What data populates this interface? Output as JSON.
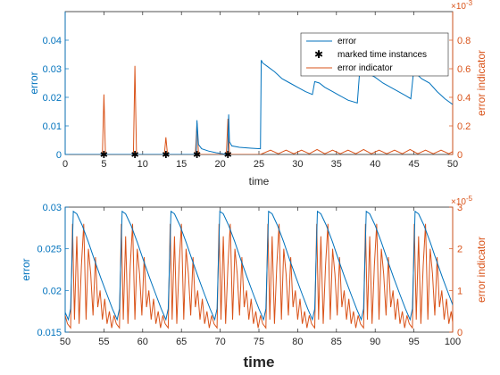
{
  "colors": {
    "error": "#0072BD",
    "indicator": "#D95319",
    "marker": "#000000",
    "axis": "#262626"
  },
  "chart_data": [
    {
      "type": "line",
      "xlabel": "time",
      "ylabel_left": "error",
      "ylabel_right": "error indicator",
      "right_exponent_base": "×10",
      "right_exponent": "-3",
      "xlim": [
        0,
        50
      ],
      "ylim_left": [
        0,
        0.05
      ],
      "ylim_right": [
        0,
        1
      ],
      "xticks": [
        "0",
        "5",
        "10",
        "15",
        "20",
        "25",
        "30",
        "35",
        "40",
        "45",
        "50"
      ],
      "yticks_left": [
        "0",
        "0.01",
        "0.02",
        "0.03",
        "0.04"
      ],
      "yticks_right": [
        "0",
        "0.2",
        "0.4",
        "0.6",
        "0.8"
      ],
      "legend_position": "top-right",
      "series": [
        {
          "name": "error",
          "axis": "left",
          "style": "line",
          "x": [
            0,
            16.9,
            17.0,
            17.2,
            17.6,
            18.5,
            19.5,
            21.0,
            21.1,
            21.2,
            21.5,
            22.5,
            24.0,
            25.2,
            25.3,
            25.5,
            26.0,
            27.0,
            28.0,
            29.0,
            30.0,
            31.0,
            31.9,
            32.2,
            32.8,
            33.5,
            34.5,
            35.5,
            36.5,
            37.7,
            38.0,
            38.3,
            39.0,
            40.0,
            41.0,
            42.0,
            43.0,
            44.0,
            44.6,
            44.9,
            45.2,
            46.0,
            47.0,
            48.0,
            49.0,
            50.0
          ],
          "y": [
            0,
            0,
            0.012,
            0.0035,
            0.002,
            0.0012,
            0.0006,
            0,
            0.014,
            0.0045,
            0.003,
            0.0025,
            0.0022,
            0.002,
            0.033,
            0.032,
            0.031,
            0.029,
            0.0265,
            0.025,
            0.0235,
            0.022,
            0.021,
            0.0255,
            0.025,
            0.0235,
            0.022,
            0.0205,
            0.019,
            0.018,
            0.029,
            0.0295,
            0.0285,
            0.027,
            0.025,
            0.0235,
            0.022,
            0.0205,
            0.0195,
            0.0275,
            0.0285,
            0.0265,
            0.025,
            0.022,
            0.0195,
            0.0175
          ]
        },
        {
          "name": "marked time instances",
          "axis": "left",
          "style": "marker",
          "x": [
            5,
            9,
            13,
            17,
            21
          ],
          "y": [
            0,
            0,
            0,
            0,
            0
          ]
        },
        {
          "name": "error indicator",
          "axis": "right",
          "style": "line",
          "x": [
            0,
            4.8,
            5.0,
            5.2,
            8.8,
            9.0,
            9.2,
            12.8,
            13.0,
            13.2,
            16.8,
            17.0,
            17.2,
            20.8,
            21.0,
            21.2,
            25.2,
            26.5,
            27.5,
            28.5,
            29.5,
            30.5,
            31.5,
            32.5,
            33.5,
            34.5,
            35.5,
            36.5,
            37.5,
            38.5,
            39.5,
            40.5,
            41.5,
            42.5,
            43.5,
            44.5,
            45.5,
            46.5,
            47.5,
            48.5,
            49.5,
            50.0
          ],
          "y": [
            0,
            0,
            0.42,
            0,
            0,
            0.62,
            0,
            0,
            0.12,
            0,
            0,
            0.22,
            0,
            0,
            0.25,
            0,
            0,
            0.03,
            0.005,
            0.03,
            0.005,
            0.03,
            0.005,
            0.035,
            0.005,
            0.03,
            0.005,
            0.03,
            0.005,
            0.035,
            0.005,
            0.03,
            0.005,
            0.03,
            0.005,
            0.035,
            0.005,
            0.03,
            0.005,
            0.03,
            0.005,
            0.02
          ]
        }
      ]
    },
    {
      "type": "line",
      "xlabel": "time",
      "ylabel_left": "error",
      "ylabel_right": "error indicator",
      "right_exponent_base": "×10",
      "right_exponent": "-5",
      "xlim": [
        50,
        100
      ],
      "ylim_left": [
        0.015,
        0.03
      ],
      "ylim_right": [
        0,
        3
      ],
      "xticks": [
        "50",
        "55",
        "60",
        "65",
        "70",
        "75",
        "80",
        "85",
        "90",
        "95",
        "100"
      ],
      "yticks_left": [
        "0.015",
        "0.02",
        "0.025",
        "0.03"
      ],
      "yticks_right": [
        "0",
        "1",
        "2",
        "3"
      ],
      "period": 6.3,
      "start": 50.7,
      "series": [
        {
          "name": "error",
          "axis": "left",
          "style": "periodic",
          "shape_x": [
            0,
            0.35,
            0.8,
            1.5,
            2.3,
            3.1,
            3.9,
            4.7,
            5.4,
            6.0
          ],
          "shape_y": [
            0.0178,
            0.0295,
            0.0292,
            0.0278,
            0.0258,
            0.0236,
            0.0215,
            0.0195,
            0.0178,
            0.0165
          ]
        },
        {
          "name": "error indicator",
          "axis": "right",
          "style": "periodic",
          "shape_x": [
            0,
            0.25,
            0.5,
            0.8,
            1.1,
            1.4,
            1.7,
            2.0,
            2.3,
            2.6,
            2.9,
            3.2,
            3.5,
            3.8,
            4.1,
            4.4,
            4.7,
            5.0,
            5.3,
            5.6,
            5.9,
            6.3
          ],
          "shape_y": [
            0.1,
            2.6,
            0.3,
            2.3,
            0.2,
            1.6,
            2.6,
            0.3,
            2.0,
            1.4,
            0.4,
            1.8,
            0.6,
            1.0,
            0.3,
            0.8,
            0.2,
            0.5,
            0.1,
            0.4,
            0.2,
            0.1
          ]
        }
      ]
    }
  ]
}
